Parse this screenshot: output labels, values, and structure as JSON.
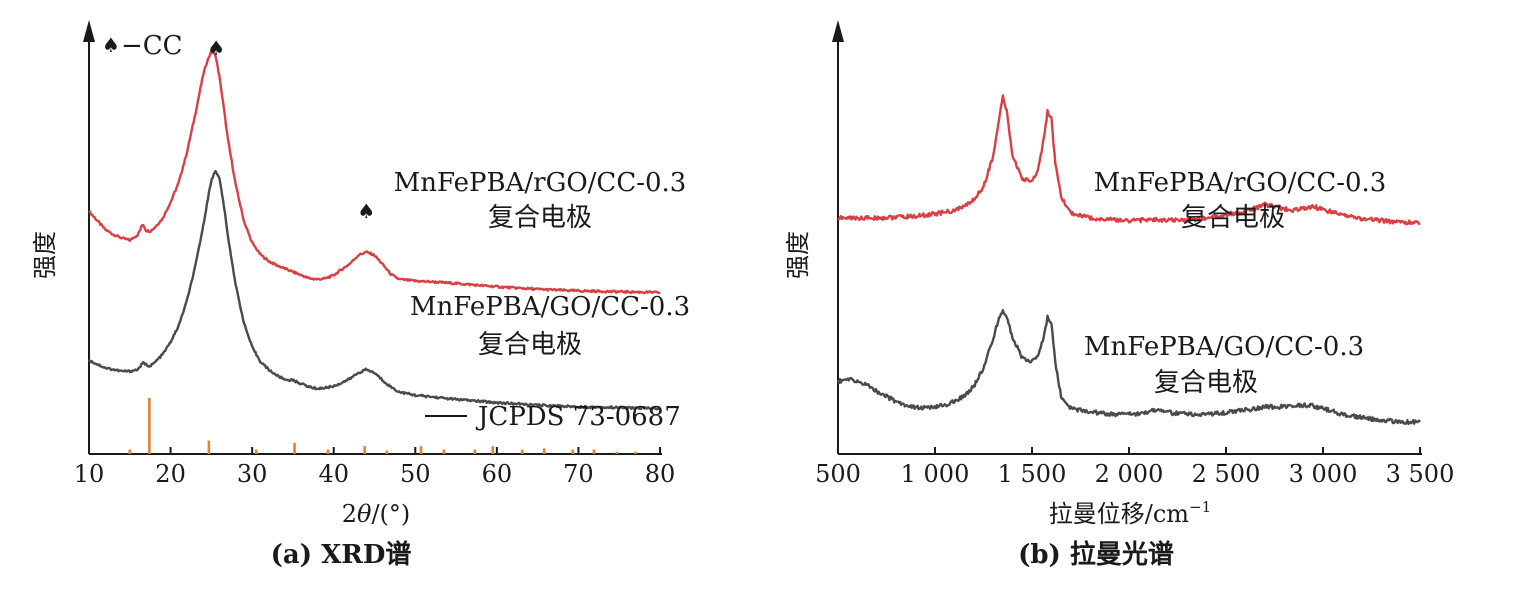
{
  "colors": {
    "axis": "#1a1a1a",
    "red_series": "#d94045",
    "gray_series": "#4a4a4a",
    "reference_bars": "#e0822e"
  },
  "chart_data": [
    {
      "type": "line",
      "panel": "a",
      "caption": "(a) XRD谱",
      "xlabel_prefix": "2",
      "xlabel_italic": "θ",
      "xlabel_suffix": "/(°)",
      "ylabel": "强度",
      "xlim": [
        10,
        80
      ],
      "ylim": [
        0,
        100
      ],
      "x_ticks": [
        10,
        20,
        30,
        40,
        50,
        60,
        70,
        80
      ],
      "x_tick_labels": [
        "10",
        "20",
        "30",
        "40",
        "50",
        "60",
        "70",
        "80"
      ],
      "y_ticks": false,
      "grid": false,
      "series": [
        {
          "name_line1": "MnFePBA/rGO/CC-0.3",
          "name_line2": "复合电极",
          "color": "#d94045",
          "x": [
            10,
            12,
            13,
            14,
            15,
            16,
            16.6,
            17,
            17.5,
            18,
            19,
            20,
            21,
            22,
            23,
            24,
            24.5,
            25,
            25.5,
            26,
            26.5,
            27,
            28,
            29,
            30,
            31,
            32,
            33,
            34,
            35,
            36,
            37,
            38,
            39,
            40,
            41,
            42,
            43,
            44,
            45,
            46,
            47,
            48,
            49,
            50,
            52,
            55,
            60,
            65,
            70,
            75,
            80
          ],
          "y": [
            58.6,
            54.2,
            53.0,
            52.2,
            51.6,
            53.0,
            55.6,
            54.0,
            53.8,
            54.6,
            56.8,
            60.8,
            65.6,
            72.8,
            81.8,
            91.6,
            95.0,
            97.2,
            96.4,
            91.0,
            84.0,
            76.4,
            64.8,
            56.2,
            51.0,
            48.2,
            46.6,
            45.6,
            44.8,
            44.0,
            43.2,
            42.4,
            42.2,
            42.4,
            43.2,
            44.6,
            46.0,
            48.0,
            48.8,
            48.0,
            45.8,
            43.4,
            42.2,
            42.0,
            41.8,
            41.6,
            41.2,
            40.4,
            39.8,
            39.4,
            39.2,
            39.0
          ]
        },
        {
          "name_line1": "MnFePBA/GO/CC-0.3",
          "name_line2": "复合电极",
          "color": "#4a4a4a",
          "x": [
            10,
            12,
            13,
            14,
            15,
            16,
            16.6,
            17,
            17.5,
            18,
            19,
            20,
            21,
            22,
            23,
            24,
            24.5,
            25,
            25.5,
            26,
            26.5,
            27,
            28,
            29,
            30,
            31,
            32,
            33,
            34,
            35,
            36,
            37,
            38,
            39,
            40,
            41,
            42,
            43,
            44,
            45,
            46,
            47,
            48,
            49,
            50,
            52,
            55,
            60,
            65,
            70,
            75,
            80
          ],
          "y": [
            22.6,
            20.8,
            20.4,
            20.0,
            20.0,
            20.4,
            22.0,
            21.6,
            21.2,
            22.0,
            24.0,
            27.0,
            31.0,
            37.0,
            45.0,
            55.0,
            61.0,
            66.0,
            68.6,
            66.4,
            60.6,
            53.0,
            40.6,
            31.6,
            25.8,
            22.4,
            20.4,
            19.0,
            18.0,
            17.8,
            17.0,
            16.2,
            15.8,
            16.0,
            16.4,
            17.2,
            18.2,
            19.6,
            20.4,
            19.6,
            17.8,
            16.2,
            15.0,
            14.6,
            14.2,
            13.8,
            13.2,
            12.4,
            11.8,
            11.4,
            11.2,
            11.0
          ]
        }
      ],
      "reference": {
        "name": "JCPDS 73-0687",
        "positions": [
          15,
          17.4,
          24.7,
          30.5,
          35.2,
          39.3,
          43.8,
          46.5,
          50.7,
          53.5,
          57.3,
          59.5,
          63.1,
          65.8,
          69.3,
          71.9,
          74.7,
          77.0
        ],
        "intensities": [
          8,
          100,
          24,
          8,
          20,
          8,
          14,
          6,
          14,
          8,
          8,
          14,
          8,
          10,
          8,
          8,
          4,
          4
        ]
      },
      "annotations": [
        {
          "marker": "♠",
          "text": "−CC",
          "role": "legend"
        },
        {
          "marker": "♠",
          "x": 25.6,
          "role": "peak"
        },
        {
          "marker": "♠",
          "x": 44.0,
          "role": "peak"
        }
      ]
    },
    {
      "type": "line",
      "panel": "b",
      "caption": "(b) 拉曼光谱",
      "xlabel": "拉曼位移/cm",
      "xlabel_sup": "−1",
      "ylabel": "强度",
      "xlim": [
        500,
        3500
      ],
      "ylim": [
        0,
        100
      ],
      "x_ticks": [
        500,
        1000,
        1500,
        2000,
        2500,
        3000,
        3500
      ],
      "x_tick_labels": [
        "500",
        "1 000",
        "1 500",
        "2 000",
        "2 500",
        "3 000",
        "3 500"
      ],
      "y_ticks": false,
      "grid": false,
      "series": [
        {
          "name_line1": "MnFePBA/rGO/CC-0.3",
          "name_line2": "复合电极",
          "color": "#d94045",
          "x": [
            500,
            700,
            900,
            1000,
            1100,
            1150,
            1200,
            1250,
            1300,
            1330,
            1350,
            1370,
            1400,
            1450,
            1500,
            1530,
            1560,
            1580,
            1600,
            1620,
            1650,
            1700,
            1800,
            1900,
            2000,
            2100,
            2200,
            2300,
            2400,
            2500,
            2600,
            2650,
            2700,
            2750,
            2800,
            2850,
            2900,
            2950,
            3000,
            3100,
            3200,
            3300,
            3400,
            3500
          ],
          "y": [
            57.0,
            57.0,
            57.4,
            58.0,
            58.8,
            59.8,
            61.4,
            64.6,
            72.0,
            80.6,
            86.4,
            82.6,
            72.0,
            66.4,
            66.0,
            68.4,
            76.0,
            82.6,
            81.0,
            70.0,
            62.0,
            58.2,
            57.0,
            56.6,
            56.4,
            56.6,
            56.4,
            56.6,
            57.0,
            57.8,
            58.6,
            59.4,
            60.2,
            59.8,
            59.2,
            58.8,
            59.4,
            59.8,
            59.0,
            57.8,
            56.8,
            56.4,
            56.0,
            55.8
          ]
        },
        {
          "name_line1": "MnFePBA/GO/CC-0.3",
          "name_line2": "复合电极",
          "color": "#4a4a4a",
          "x": [
            500,
            550,
            600,
            650,
            700,
            800,
            900,
            1000,
            1100,
            1150,
            1200,
            1250,
            1300,
            1330,
            1350,
            1370,
            1400,
            1450,
            1500,
            1530,
            1560,
            1580,
            1600,
            1620,
            1650,
            1700,
            1800,
            1900,
            2000,
            2100,
            2150,
            2200,
            2300,
            2400,
            2500,
            2600,
            2700,
            2800,
            2900,
            2950,
            3000,
            3100,
            3200,
            3300,
            3400,
            3500
          ],
          "y": [
            17.6,
            18.0,
            17.6,
            16.6,
            15.2,
            12.6,
            11.2,
            11.2,
            12.6,
            14.0,
            16.4,
            20.6,
            28.0,
            32.8,
            34.8,
            33.2,
            28.0,
            23.2,
            22.4,
            23.6,
            28.0,
            33.0,
            31.8,
            22.0,
            14.0,
            11.0,
            10.2,
            9.6,
            9.6,
            10.0,
            11.0,
            10.0,
            9.6,
            9.6,
            10.0,
            10.6,
            11.4,
            11.4,
            11.8,
            11.6,
            11.0,
            9.6,
            8.8,
            8.2,
            7.8,
            7.6
          ]
        }
      ]
    }
  ]
}
